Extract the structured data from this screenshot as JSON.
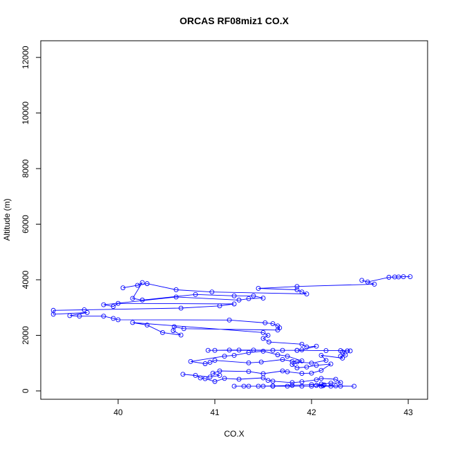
{
  "chart_data": {
    "type": "line",
    "title": "ORCAS RF08miz1 CO.X",
    "xlabel": "CO.X",
    "ylabel": "Altitude (m)",
    "xlim": [
      39.2,
      43.2
    ],
    "ylim": [
      -300,
      12600
    ],
    "xticks": [
      40,
      41,
      42,
      43
    ],
    "yticks": [
      0,
      2000,
      4000,
      6000,
      8000,
      10000,
      12000
    ],
    "series": [
      {
        "color": "#0000ff",
        "marker": "open-circle",
        "points": [
          [
            43.02,
            4110
          ],
          [
            42.95,
            4110
          ],
          [
            42.9,
            4100
          ],
          [
            42.86,
            4100
          ],
          [
            42.8,
            4090
          ],
          [
            42.58,
            3920
          ],
          [
            42.52,
            3980
          ],
          [
            42.65,
            3840
          ],
          [
            41.85,
            3760
          ],
          [
            41.45,
            3690
          ],
          [
            41.85,
            3640
          ],
          [
            41.9,
            3560
          ],
          [
            41.95,
            3490
          ],
          [
            40.97,
            3560
          ],
          [
            40.6,
            3640
          ],
          [
            40.3,
            3860
          ],
          [
            40.05,
            3710
          ],
          [
            40.2,
            3800
          ],
          [
            40.25,
            3900
          ],
          [
            40.15,
            3330
          ],
          [
            40.25,
            3270
          ],
          [
            40.8,
            3470
          ],
          [
            41.2,
            3420
          ],
          [
            41.4,
            3420
          ],
          [
            41.5,
            3340
          ],
          [
            41.35,
            3320
          ],
          [
            41.25,
            3270
          ],
          [
            40.6,
            3380
          ],
          [
            39.85,
            3100
          ],
          [
            39.95,
            3040
          ],
          [
            40.0,
            3150
          ],
          [
            41.2,
            3130
          ],
          [
            41.05,
            3060
          ],
          [
            40.65,
            2980
          ],
          [
            39.65,
            2920
          ],
          [
            39.33,
            2900
          ],
          [
            39.33,
            2760
          ],
          [
            39.68,
            2820
          ],
          [
            39.5,
            2710
          ],
          [
            39.6,
            2690
          ],
          [
            39.85,
            2690
          ],
          [
            39.95,
            2610
          ],
          [
            40.0,
            2560
          ],
          [
            41.15,
            2550
          ],
          [
            41.52,
            2450
          ],
          [
            41.6,
            2420
          ],
          [
            41.65,
            2340
          ],
          [
            41.67,
            2270
          ],
          [
            41.65,
            2190
          ],
          [
            40.68,
            2240
          ],
          [
            40.58,
            2310
          ],
          [
            40.57,
            2170
          ],
          [
            40.65,
            2010
          ],
          [
            40.46,
            2100
          ],
          [
            40.3,
            2370
          ],
          [
            40.15,
            2460
          ],
          [
            41.5,
            2100
          ],
          [
            41.55,
            2000
          ],
          [
            41.5,
            1890
          ],
          [
            41.56,
            1760
          ],
          [
            41.9,
            1680
          ],
          [
            41.95,
            1580
          ],
          [
            42.05,
            1610
          ],
          [
            41.9,
            1480
          ],
          [
            41.85,
            1460
          ],
          [
            41.7,
            1460
          ],
          [
            41.4,
            1470
          ],
          [
            41.25,
            1470
          ],
          [
            41.15,
            1470
          ],
          [
            41.0,
            1460
          ],
          [
            40.93,
            1460
          ],
          [
            41.6,
            1460
          ],
          [
            41.85,
            1460
          ],
          [
            42.15,
            1450
          ],
          [
            42.3,
            1450
          ],
          [
            42.4,
            1440
          ],
          [
            42.37,
            1440
          ],
          [
            42.32,
            1400
          ],
          [
            42.35,
            1290
          ],
          [
            42.3,
            1250
          ],
          [
            42.32,
            1180
          ],
          [
            42.1,
            1280
          ],
          [
            42.15,
            1100
          ],
          [
            42.0,
            1000
          ],
          [
            41.8,
            1060
          ],
          [
            41.85,
            1040
          ],
          [
            41.7,
            1130
          ],
          [
            41.48,
            1040
          ],
          [
            41.35,
            1010
          ],
          [
            41.0,
            1100
          ],
          [
            40.95,
            1030
          ],
          [
            40.9,
            980
          ],
          [
            40.75,
            1060
          ],
          [
            41.1,
            1250
          ],
          [
            41.2,
            1280
          ],
          [
            41.35,
            1380
          ],
          [
            41.5,
            1430
          ],
          [
            41.65,
            1300
          ],
          [
            41.75,
            1250
          ],
          [
            41.9,
            1080
          ],
          [
            41.8,
            950
          ],
          [
            41.85,
            830
          ],
          [
            41.95,
            860
          ],
          [
            42.05,
            920
          ],
          [
            42.2,
            970
          ],
          [
            42.1,
            740
          ],
          [
            42.0,
            640
          ],
          [
            41.9,
            630
          ],
          [
            41.75,
            690
          ],
          [
            41.7,
            720
          ],
          [
            41.5,
            620
          ],
          [
            41.35,
            700
          ],
          [
            41.05,
            720
          ],
          [
            40.98,
            640
          ],
          [
            41.05,
            560
          ],
          [
            40.95,
            500
          ],
          [
            40.67,
            600
          ],
          [
            40.8,
            560
          ],
          [
            40.85,
            470
          ],
          [
            40.9,
            440
          ],
          [
            41.0,
            340
          ],
          [
            41.1,
            450
          ],
          [
            41.25,
            420
          ],
          [
            41.5,
            470
          ],
          [
            41.55,
            380
          ],
          [
            41.6,
            350
          ],
          [
            41.8,
            300
          ],
          [
            41.9,
            330
          ],
          [
            42.05,
            400
          ],
          [
            42.1,
            450
          ],
          [
            42.25,
            420
          ],
          [
            42.3,
            300
          ],
          [
            42.2,
            280
          ],
          [
            42.1,
            250
          ],
          [
            42.0,
            230
          ],
          [
            41.8,
            200
          ],
          [
            41.6,
            180
          ],
          [
            41.45,
            170
          ],
          [
            41.3,
            170
          ],
          [
            41.2,
            170
          ],
          [
            41.35,
            170
          ],
          [
            41.5,
            170
          ],
          [
            41.6,
            170
          ],
          [
            41.75,
            170
          ],
          [
            41.9,
            170
          ],
          [
            42.0,
            170
          ],
          [
            42.1,
            170
          ],
          [
            42.2,
            170
          ],
          [
            42.3,
            170
          ],
          [
            42.44,
            170
          ],
          [
            42.25,
            180
          ],
          [
            42.12,
            190
          ],
          [
            42.05,
            200
          ],
          [
            42.13,
            220
          ]
        ]
      }
    ]
  }
}
